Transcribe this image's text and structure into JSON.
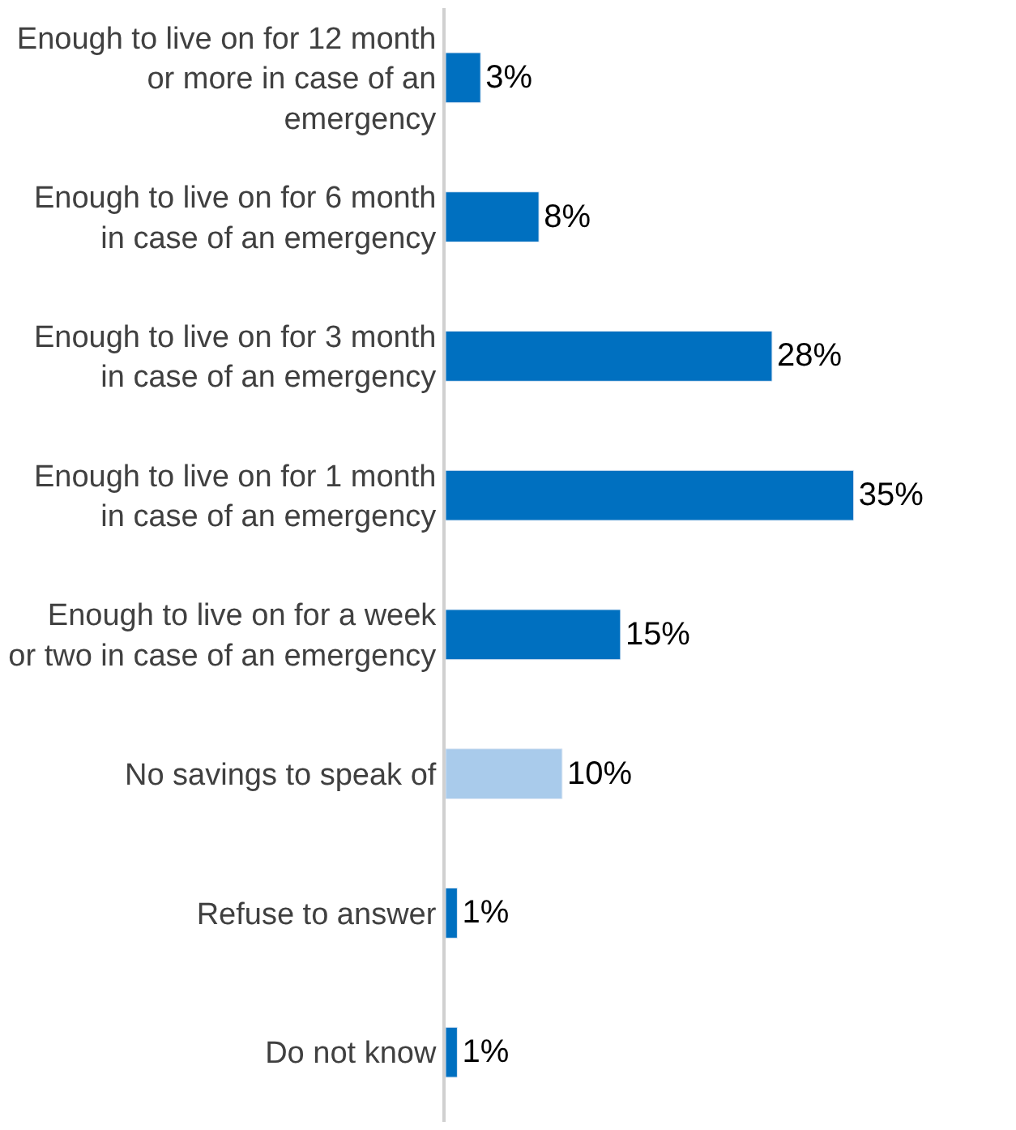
{
  "chart_data": {
    "type": "bar",
    "orientation": "horizontal",
    "categories": [
      "Enough to live on for 12 month or more in case of an emergency",
      "Enough to live on for 6 month in case of an emergency",
      "Enough to live on for 3 month in case of an emergency",
      "Enough to live on for 1 month in case of an emergency",
      "Enough to live on for a week or two in case of an emergency",
      "No savings to speak of",
      "Refuse to answer",
      "Do not know"
    ],
    "values": [
      3,
      8,
      28,
      35,
      15,
      10,
      1,
      1
    ],
    "colors": [
      "#0070c0",
      "#0070c0",
      "#0070c0",
      "#0070c0",
      "#0070c0",
      "#a9cbeb",
      "#0070c0",
      "#0070c0"
    ],
    "value_labels": [
      "3%",
      "8%",
      "28%",
      "35%",
      "15%",
      "10%",
      "1%",
      "1%"
    ],
    "legend": false
  }
}
